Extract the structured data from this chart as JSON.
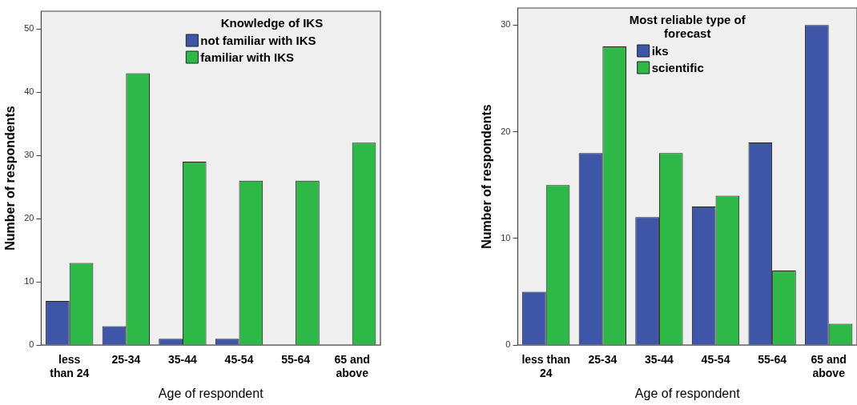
{
  "chart_data": [
    {
      "type": "bar",
      "xlabel": "Age of respondent",
      "ylabel": "Number of respondents",
      "legend_title": "Knowledge of IKS",
      "legend": "top right",
      "grid": false,
      "categories": [
        "less than 24",
        "25-34",
        "35-44",
        "45-54",
        "55-64",
        "65 and above"
      ],
      "series": [
        {
          "name": "not familiar with IKS",
          "color": "#3f55a8",
          "values": [
            7,
            3,
            1,
            1,
            null,
            null
          ]
        },
        {
          "name": "familiar with IKS",
          "color": "#2eb848",
          "values": [
            13,
            43,
            29,
            26,
            26,
            32
          ]
        }
      ],
      "ylim": [
        0,
        52.8
      ],
      "yticks": [
        0,
        10,
        20,
        30,
        40,
        50
      ]
    },
    {
      "type": "bar",
      "xlabel": "Age of respondent",
      "ylabel": "Number of respondents",
      "legend_title": "Most reliable type of forecast",
      "legend": "top",
      "grid": false,
      "categories": [
        "less than 24",
        "25-34",
        "35-44",
        "45-54",
        "55-64",
        "65 and above"
      ],
      "series": [
        {
          "name": "iks",
          "color": "#3f55a8",
          "values": [
            5,
            18,
            12,
            13,
            19,
            30
          ]
        },
        {
          "name": "scientific",
          "color": "#2eb848",
          "values": [
            15,
            28,
            18,
            14,
            7,
            2
          ]
        }
      ],
      "ylim": [
        0,
        31.6
      ],
      "yticks": [
        0,
        10,
        20,
        30
      ]
    }
  ]
}
